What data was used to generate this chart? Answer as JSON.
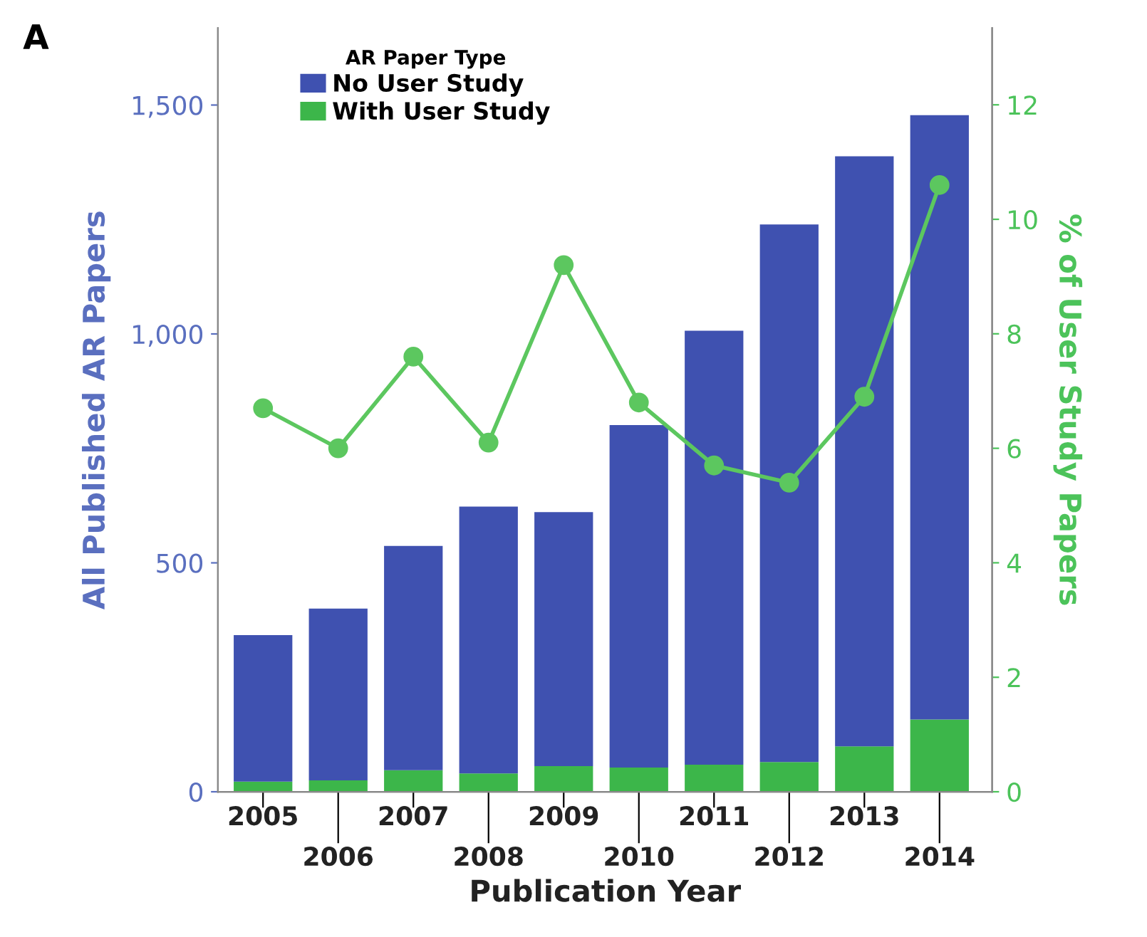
{
  "chart_data": {
    "type": "bar",
    "stacked": true,
    "title": null,
    "annotations": [
      "A"
    ],
    "xlabel": "Publication Year",
    "ylabel": "All Published AR Papers",
    "y2label": "% of User Study Papers",
    "legend_title": "AR Paper Type",
    "legend": "top left",
    "grid": false,
    "categories": [
      "2005",
      "2006",
      "2007",
      "2008",
      "2009",
      "2010",
      "2011",
      "2012",
      "2013",
      "2014"
    ],
    "series": [
      {
        "name": "With User Study",
        "color": "#3cb64a",
        "values": [
          22,
          25,
          47,
          40,
          56,
          53,
          59,
          65,
          99,
          158
        ]
      },
      {
        "name": "No User Study",
        "color": "#3f51b0",
        "values": [
          320,
          375,
          490,
          583,
          555,
          748,
          948,
          1174,
          1289,
          1320
        ]
      },
      {
        "type": "line",
        "axis": "y2",
        "color": "#5cc75f",
        "marker": "circle",
        "line_style": "solid",
        "values": [
          6.7,
          6.0,
          7.6,
          6.1,
          9.2,
          6.8,
          5.7,
          5.4,
          6.9,
          10.6
        ]
      }
    ],
    "ylim": [
      0,
      1668
    ],
    "yticks": [
      0,
      {
        "value": 500,
        "label": "500"
      },
      {
        "value": 1000,
        "label": "1,000"
      },
      {
        "value": 1500,
        "label": "1,500"
      }
    ],
    "y2lim": [
      0,
      13.34
    ],
    "y2ticks": [
      0,
      2,
      4,
      6,
      8,
      10,
      12
    ]
  }
}
